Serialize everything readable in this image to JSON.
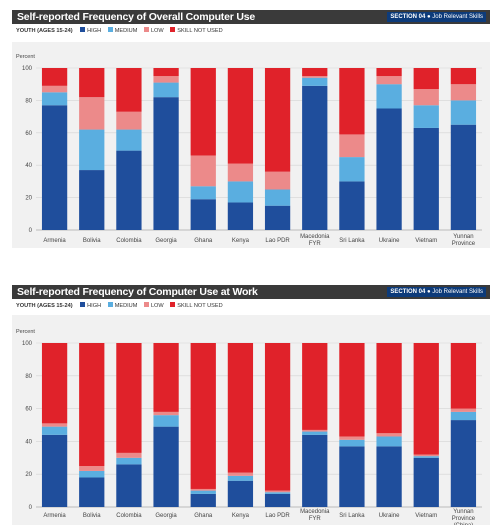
{
  "section_label": "SECTION 04",
  "section_name": "Job Relevant Skills",
  "legend": {
    "group": "YOUTH (AGES 15-24)",
    "items": [
      {
        "label": "HIGH",
        "color": "#1f4e9c"
      },
      {
        "label": "MEDIUM",
        "color": "#5aaee0"
      },
      {
        "label": "LOW",
        "color": "#ec8a8a"
      },
      {
        "label": "SKILL NOT USED",
        "color": "#e0222a"
      }
    ]
  },
  "chart_data": [
    {
      "type": "bar",
      "stacked": true,
      "title": "Self-reported Frequency of Overall Computer Use",
      "ylabel": "Percent",
      "ylim": [
        0,
        100
      ],
      "yticks": [
        0,
        20,
        40,
        60,
        80,
        100
      ],
      "categories": [
        "Armenia",
        "Bolivia",
        "Colombia",
        "Georgia",
        "Ghana",
        "Kenya",
        "Lao PDR",
        "Macedonia FYR",
        "Sri Lanka",
        "Ukraine",
        "Vietnam",
        "Yunnan Province (China)"
      ],
      "series": [
        {
          "name": "HIGH",
          "values": [
            77,
            37,
            49,
            82,
            19,
            17,
            15,
            89,
            30,
            75,
            63,
            65
          ]
        },
        {
          "name": "MEDIUM",
          "values": [
            8,
            25,
            13,
            9,
            8,
            13,
            10,
            5,
            15,
            15,
            14,
            15
          ]
        },
        {
          "name": "LOW",
          "values": [
            4,
            20,
            11,
            4,
            19,
            11,
            11,
            1,
            14,
            5,
            10,
            10
          ]
        },
        {
          "name": "SKILL NOT USED",
          "values": [
            11,
            18,
            27,
            5,
            54,
            59,
            64,
            5,
            41,
            5,
            13,
            10
          ]
        }
      ]
    },
    {
      "type": "bar",
      "stacked": true,
      "title": "Self-reported Frequency of Computer Use at Work",
      "ylabel": "Percent",
      "ylim": [
        0,
        100
      ],
      "yticks": [
        0,
        20,
        40,
        60,
        80,
        100
      ],
      "categories": [
        "Armenia",
        "Bolivia",
        "Colombia",
        "Georgia",
        "Ghana",
        "Kenya",
        "Lao PDR",
        "Macedonia FYR",
        "Sri Lanka",
        "Ukraine",
        "Vietnam",
        "Yunnan Province (China)"
      ],
      "series": [
        {
          "name": "HIGH",
          "values": [
            44,
            18,
            26,
            49,
            8,
            16,
            8,
            44,
            37,
            37,
            30,
            53
          ]
        },
        {
          "name": "MEDIUM",
          "values": [
            5,
            4,
            4,
            7,
            2,
            3,
            1,
            2,
            4,
            6,
            1,
            5
          ]
        },
        {
          "name": "LOW",
          "values": [
            2,
            3,
            3,
            2,
            1,
            2,
            1,
            1,
            2,
            2,
            1,
            2
          ]
        },
        {
          "name": "SKILL NOT USED",
          "values": [
            49,
            75,
            67,
            42,
            89,
            79,
            90,
            53,
            57,
            55,
            68,
            40
          ]
        }
      ]
    }
  ]
}
